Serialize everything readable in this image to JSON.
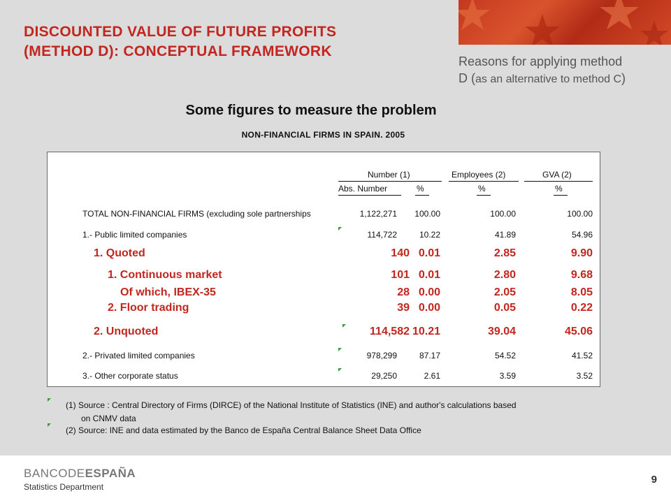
{
  "slide": {
    "title_line1": "DISCOUNTED VALUE OF FUTURE PROFITS",
    "title_line2": "(METHOD D): CONCEPTUAL FRAMEWORK",
    "subtitle_line1": "Reasons for applying method",
    "subtitle_line2_main": "D (",
    "subtitle_line2_small": "as an alternative to method C",
    "subtitle_line2_end": ")",
    "heading": "Some figures to measure the problem",
    "subheading": "NON-FINANCIAL FIRMS IN SPAIN. 2005",
    "accent_color": "#c2261f"
  },
  "table": {
    "group_headers": [
      "Number (1)",
      "Employees (2)",
      "GVA (2)"
    ],
    "sub_headers": [
      "Abs. Number",
      "%",
      "%",
      "%"
    ],
    "rows": [
      {
        "label": "TOTAL NON-FINANCIAL FIRMS (excluding sole partnerships",
        "abs": "1,122,271",
        "pct": "100.00",
        "emp": "100.00",
        "gva": "100.00"
      },
      {
        "label": "1.- Public limited companies",
        "abs": "114,722",
        "pct": "10.22",
        "emp": "41.89",
        "gva": "54.96"
      },
      {
        "label": "1. Quoted",
        "abs": "140",
        "pct": "0.01",
        "emp": "2.85",
        "gva": "9.90"
      },
      {
        "label": "1. Continuous market",
        "abs": "101",
        "pct": "0.01",
        "emp": "2.80",
        "gva": "9.68"
      },
      {
        "label": "Of which, IBEX-35",
        "abs": "28",
        "pct": "0.00",
        "emp": "2.05",
        "gva": "8.05"
      },
      {
        "label": "2. Floor trading",
        "abs": "39",
        "pct": "0.00",
        "emp": "0.05",
        "gva": "0.22"
      },
      {
        "label": "2. Unquoted",
        "abs": "114,582",
        "pct": "10.21",
        "emp": "39.04",
        "gva": "45.06"
      },
      {
        "label": "2.- Privated limited companies",
        "abs": "978,299",
        "pct": "87.17",
        "emp": "54.52",
        "gva": "41.52"
      },
      {
        "label": "3.- Other corporate status",
        "abs": "29,250",
        "pct": "2.61",
        "emp": "3.59",
        "gva": "3.52"
      }
    ]
  },
  "footnotes": {
    "note1_line1": "(1)  Source : Central Directory of Firms (DIRCE) of the National Institute of Statistics (INE) and author's calculations based",
    "note1_line2": "on CNMV data",
    "note2": "(2)  Source: INE and data estimated by the Banco de España Central Balance Sheet Data Office"
  },
  "footer": {
    "logo_part1": "BANCO",
    "logo_part2": "DE",
    "logo_part3": "ESPAÑA",
    "department": "Statistics Department",
    "page_number": "9"
  }
}
